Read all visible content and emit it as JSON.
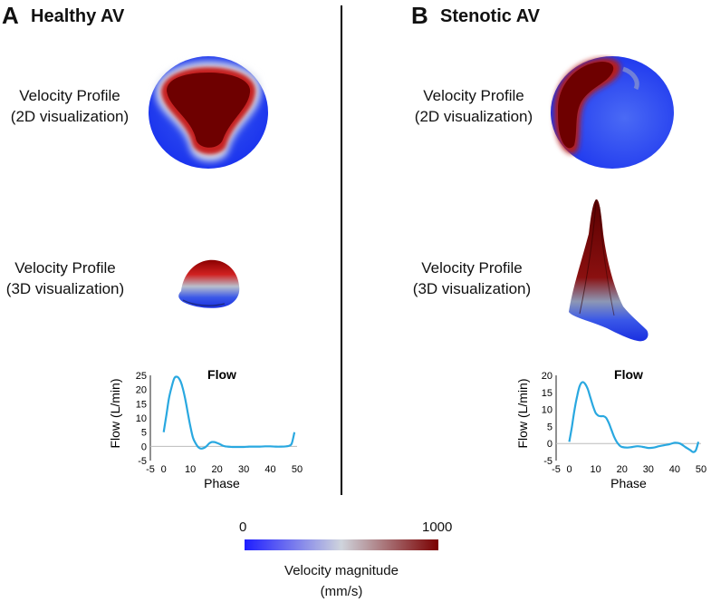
{
  "panels": [
    {
      "letter": "A",
      "title": "Healthy AV",
      "profile_2d_label": [
        "Velocity Profile",
        "(2D visualization)"
      ],
      "profile_3d_label": [
        "Velocity Profile",
        "(3D visualization)"
      ]
    },
    {
      "letter": "B",
      "title": "Stenotic AV",
      "profile_2d_label": [
        "Velocity Profile",
        "(2D visualization)"
      ],
      "profile_3d_label": [
        "Velocity Profile",
        "(3D visualization)"
      ]
    }
  ],
  "colorbar": {
    "min_label": "0",
    "max_label": "1000",
    "title_line1": "Velocity magnitude",
    "title_line2": "(mm/s)",
    "colors": {
      "low": "#1e1eff",
      "mid": "#cfd4dc",
      "high": "#7a0000"
    }
  },
  "chart_data": [
    {
      "type": "line",
      "title": "Flow",
      "xlabel": "Phase",
      "ylabel": "Flow (L/min)",
      "xlim": [
        -5,
        50
      ],
      "ylim": [
        -5,
        25
      ],
      "xticks": [
        "-5",
        "0",
        "10",
        "20",
        "30",
        "40",
        "50"
      ],
      "yticks": [
        "-5",
        "0",
        "5",
        "10",
        "15",
        "20",
        "25"
      ],
      "line_color": "#29a8e0",
      "x": [
        0,
        1,
        2,
        3,
        4,
        5,
        6,
        7,
        8,
        9,
        10,
        11,
        12,
        13,
        14,
        15,
        16,
        17,
        18,
        19,
        20,
        21,
        22,
        23,
        24,
        26,
        28,
        30,
        32,
        34,
        36,
        38,
        40,
        42,
        44,
        46,
        47,
        48,
        49
      ],
      "y": [
        5,
        11,
        17,
        21,
        24,
        24.5,
        23.5,
        21,
        17,
        12,
        7,
        3,
        1,
        -0.3,
        -0.8,
        -0.6,
        0,
        1,
        1.5,
        1.5,
        1.2,
        0.8,
        0.3,
        0,
        -0.1,
        -0.2,
        -0.2,
        -0.2,
        -0.1,
        -0.1,
        -0.1,
        0,
        0,
        -0.1,
        -0.1,
        0,
        0.2,
        1,
        5
      ]
    },
    {
      "type": "line",
      "title": "Flow",
      "xlabel": "Phase",
      "ylabel": "Flow (L/min)",
      "xlim": [
        -5,
        50
      ],
      "ylim": [
        -5,
        20
      ],
      "xticks": [
        "-5",
        "0",
        "10",
        "20",
        "30",
        "40",
        "50"
      ],
      "yticks": [
        "-5",
        "0",
        "5",
        "10",
        "15",
        "20"
      ],
      "line_color": "#29a8e0",
      "x": [
        0,
        1,
        2,
        3,
        4,
        5,
        6,
        7,
        8,
        9,
        10,
        11,
        12,
        13,
        14,
        15,
        16,
        17,
        18,
        19,
        20,
        22,
        24,
        26,
        28,
        30,
        32,
        34,
        36,
        38,
        40,
        42,
        44,
        46,
        47,
        48,
        49
      ],
      "y": [
        0.5,
        5,
        10,
        14,
        17,
        18,
        17.5,
        16,
        13.5,
        11,
        9,
        8.2,
        8,
        8,
        7.5,
        6,
        4,
        2,
        0.5,
        -0.5,
        -1,
        -1.2,
        -1,
        -0.8,
        -1,
        -1.3,
        -1.2,
        -0.8,
        -0.5,
        -0.2,
        0.2,
        0,
        -1,
        -2,
        -2.5,
        -2,
        0.5
      ]
    }
  ]
}
